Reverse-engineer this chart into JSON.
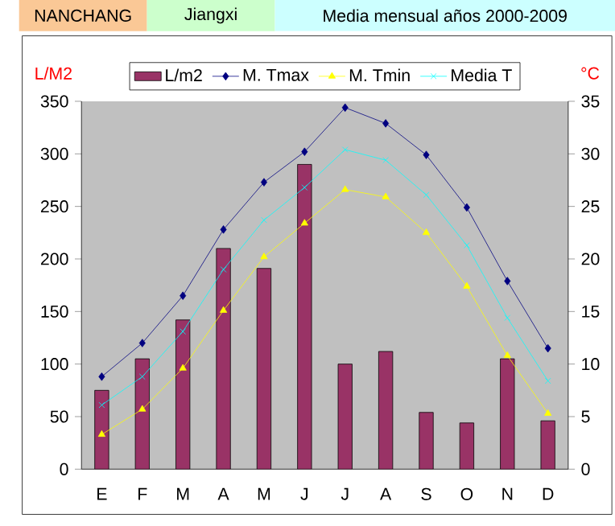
{
  "chart_data": {
    "type": "bar",
    "title": "NANCHANG",
    "subtitle": "Jiangxi",
    "annotations": [
      "Media mensual años 2000-2009"
    ],
    "ylabel": "L/M2",
    "y2label": "°C",
    "categories": [
      "E",
      "F",
      "M",
      "A",
      "M",
      "J",
      "J",
      "A",
      "S",
      "O",
      "N",
      "D"
    ],
    "series": [
      {
        "name": "L/m2",
        "color": "#993366",
        "values": [
          75,
          105,
          142,
          210,
          191,
          290,
          100,
          112,
          54,
          44,
          105,
          46
        ]
      },
      {
        "name": "M. Tmax",
        "type": "line",
        "axis": "y2",
        "marker": "diamond",
        "color": "#000080",
        "values": [
          8.8,
          12.0,
          16.5,
          22.8,
          27.3,
          30.2,
          34.4,
          32.9,
          29.9,
          24.9,
          17.9,
          11.5
        ]
      },
      {
        "name": "M. Tmin",
        "type": "line",
        "axis": "y2",
        "marker": "triangle",
        "color": "#ffff00",
        "values": [
          3.3,
          5.7,
          9.6,
          15.1,
          20.2,
          23.4,
          26.6,
          25.9,
          22.5,
          17.4,
          10.8,
          5.3
        ]
      },
      {
        "name": "Media T",
        "type": "line",
        "axis": "y2",
        "marker": "cross",
        "color": "#00ffff",
        "values": [
          6.1,
          8.8,
          13.1,
          19.0,
          23.7,
          26.8,
          30.4,
          29.4,
          26.1,
          21.3,
          14.4,
          8.4
        ]
      }
    ],
    "ylim": [
      0,
      350
    ],
    "yticks": [
      0,
      50,
      100,
      150,
      200,
      250,
      300,
      350
    ],
    "y2lim": [
      0,
      35
    ],
    "y2ticks": [
      0,
      5,
      10,
      15,
      20,
      25,
      30,
      35
    ],
    "legend": "top"
  }
}
